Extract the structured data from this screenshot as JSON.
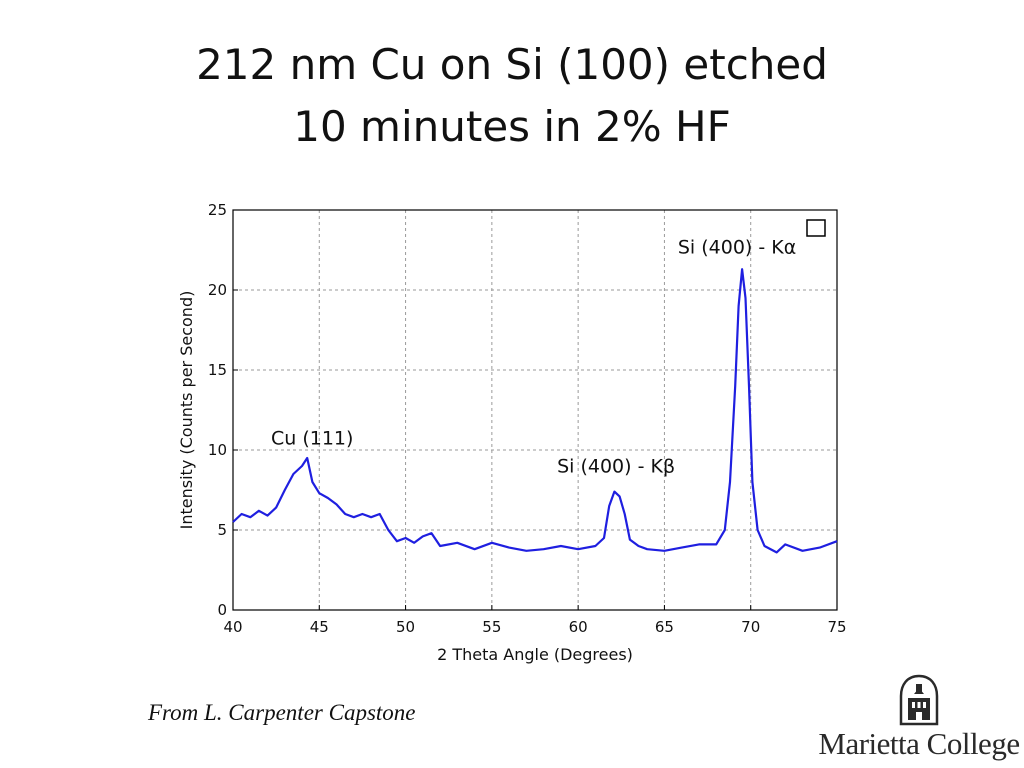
{
  "slide": {
    "title_line1": "212 nm Cu on Si (100) etched",
    "title_line2": "10 minutes in 2% HF",
    "credit": "From L. Carpenter Capstone"
  },
  "logo": {
    "text": "Marietta College",
    "icon": "college-tower-emblem-icon"
  },
  "colors": {
    "series": "#1f1fe0",
    "grid": "#9a9a9a",
    "axis": "#000000",
    "text": "#111111"
  },
  "chart_data": {
    "type": "line",
    "title": "",
    "xlabel": "2 Theta Angle (Degrees)",
    "ylabel": "Intensity (Counts per Second)",
    "xlim": [
      40,
      75
    ],
    "ylim": [
      0,
      25
    ],
    "xticks": [
      40,
      45,
      50,
      55,
      60,
      65,
      70,
      75
    ],
    "yticks": [
      0,
      5,
      10,
      15,
      20,
      25
    ],
    "grid": true,
    "legend": {
      "position": "top-right",
      "entries": [
        ""
      ]
    },
    "series": [
      {
        "x": [
          40,
          40.5,
          41,
          41.5,
          42,
          42.5,
          43,
          43.5,
          44,
          44.3,
          44.6,
          45,
          45.5,
          46,
          46.5,
          47,
          47.5,
          48,
          48.5,
          49,
          49.5,
          50,
          50.5,
          51,
          51.5,
          52,
          53,
          54,
          55,
          56,
          57,
          58,
          59,
          60,
          61,
          61.5,
          61.8,
          62.1,
          62.4,
          62.7,
          63,
          63.5,
          64,
          65,
          66,
          67,
          68,
          68.5,
          68.8,
          69.1,
          69.3,
          69.5,
          69.7,
          69.9,
          70.1,
          70.4,
          70.8,
          71.5,
          72,
          73,
          74,
          75
        ],
        "values": [
          5.5,
          6.0,
          5.8,
          6.2,
          5.9,
          6.4,
          7.5,
          8.5,
          9.0,
          9.5,
          8.0,
          7.3,
          7.0,
          6.6,
          6.0,
          5.8,
          6.0,
          5.8,
          6.0,
          5.0,
          4.3,
          4.5,
          4.2,
          4.6,
          4.8,
          4.0,
          4.2,
          3.8,
          4.2,
          3.9,
          3.7,
          3.8,
          4.0,
          3.8,
          4.0,
          4.5,
          6.5,
          7.4,
          7.1,
          6.0,
          4.4,
          4.0,
          3.8,
          3.7,
          3.9,
          4.1,
          4.1,
          5.0,
          8.0,
          14.0,
          19.0,
          21.3,
          19.5,
          14.0,
          8.0,
          5.0,
          4.0,
          3.6,
          4.1,
          3.7,
          3.9,
          4.3
        ]
      }
    ],
    "annotations": [
      {
        "text": "Cu (111)",
        "x": 44.3,
        "y": 9.6
      },
      {
        "text": "Si (400) - Kβ",
        "x": 62.2,
        "y": 7.6
      },
      {
        "text": "Si (400) - Kα",
        "x": 69.5,
        "y": 21.4
      }
    ]
  }
}
